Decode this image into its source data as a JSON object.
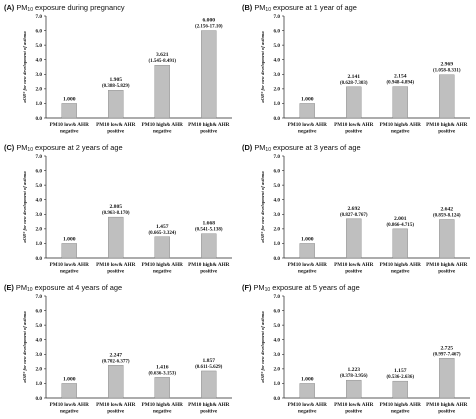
{
  "figure": {
    "colors": {
      "bar": "#bfbfbf",
      "bar_stroke": "#7f7f7f",
      "axis": "#222222",
      "text": "#111111"
    }
  },
  "chart_data": [
    {
      "type": "bar",
      "panel_label": "(A)",
      "title_pm": "PM",
      "title_pm_sub": "10",
      "title_rest": " exposure during pregnancy",
      "ylabel": "aOR* for new development of asthma",
      "ylim": [
        0,
        7
      ],
      "yticks": [
        "0.0",
        "1.0",
        "2.0",
        "3.0",
        "4.0",
        "5.0",
        "6.0",
        "7.0"
      ],
      "categories": [
        [
          "PM10 low& AHR",
          "negative"
        ],
        [
          "PM10 low& AHR",
          "positive"
        ],
        [
          "PM10 high& AHR",
          "negative"
        ],
        [
          "PM10 high& AHR",
          "positive"
        ]
      ],
      "values": [
        1.0,
        1.905,
        3.621,
        6.0
      ],
      "value_labels": [
        "1.000",
        "1.905",
        "3.621",
        "6.000"
      ],
      "ci_labels": [
        "",
        "(0.388-5.829)",
        "(1.545-8.491)",
        "(2.156-17.10)"
      ]
    },
    {
      "type": "bar",
      "panel_label": "(B)",
      "title_pm": "PM",
      "title_pm_sub": "10",
      "title_rest": " exposure at 1 year of age",
      "ylabel": "aOR* for new development of asthma",
      "ylim": [
        0,
        7
      ],
      "yticks": [
        "0.0",
        "1.0",
        "2.0",
        "3.0",
        "4.0",
        "5.0",
        "6.0",
        "7.0"
      ],
      "categories": [
        [
          "PM10 low& AHR",
          "negative"
        ],
        [
          "PM10 low& AHR",
          "positive"
        ],
        [
          "PM10 high& AHR",
          "negative"
        ],
        [
          "PM10 high& AHR",
          "positive"
        ]
      ],
      "values": [
        1.0,
        2.141,
        2.154,
        2.969
      ],
      "value_labels": [
        "1.000",
        "2.141",
        "2.154",
        "2.969"
      ],
      "ci_labels": [
        "",
        "(0.628-7.303)",
        "(0.948-4.894)",
        "(1.058-8.331)"
      ]
    },
    {
      "type": "bar",
      "panel_label": "(C)",
      "title_pm": "PM",
      "title_pm_sub": "10",
      "title_rest": " exposure at 2 years of age",
      "ylabel": "aOR* for new development of asthma",
      "ylim": [
        0,
        7
      ],
      "yticks": [
        "0.0",
        "1.0",
        "2.0",
        "3.0",
        "4.0",
        "5.0",
        "6.0",
        "7.0"
      ],
      "categories": [
        [
          "PM10 low& AHR",
          "negative"
        ],
        [
          "PM10 low& AHR",
          "positive"
        ],
        [
          "PM10 high& AHR",
          "negative"
        ],
        [
          "PM10 high& AHR",
          "positive"
        ]
      ],
      "values": [
        1.0,
        2.805,
        1.457,
        1.668
      ],
      "value_labels": [
        "1.000",
        "2.805",
        "1.457",
        "1.668"
      ],
      "ci_labels": [
        "",
        "(0.963-8.170)",
        "(0.665-3.324)",
        "(0.541-5.138)"
      ]
    },
    {
      "type": "bar",
      "panel_label": "(D)",
      "title_pm": "PM",
      "title_pm_sub": "10",
      "title_rest": " exposure at 3 years of age",
      "ylabel": "aOR* for new development of asthma",
      "ylim": [
        0,
        7
      ],
      "yticks": [
        "0.0",
        "1.0",
        "2.0",
        "3.0",
        "4.0",
        "5.0",
        "6.0",
        "7.0"
      ],
      "categories": [
        [
          "PM10 low& AHR",
          "negative"
        ],
        [
          "PM10 low& AHR",
          "positive"
        ],
        [
          "PM10 high& AHR",
          "negative"
        ],
        [
          "PM10 high& AHR",
          "positive"
        ]
      ],
      "values": [
        1.0,
        2.692,
        2.001,
        2.642
      ],
      "value_labels": [
        "1.000",
        "2.692",
        "2.001",
        "2.642"
      ],
      "ci_labels": [
        "",
        "(0.827-8.767)",
        "(0.866-4.715)",
        "(0.859-8.124)"
      ]
    },
    {
      "type": "bar",
      "panel_label": "(E)",
      "title_pm": "PM",
      "title_pm_sub": "10",
      "title_rest": " exposure at 4 years of age",
      "ylabel": "aOR* for new development of asthma",
      "ylim": [
        0,
        7
      ],
      "yticks": [
        "0.0",
        "1.0",
        "2.0",
        "3.0",
        "4.0",
        "5.0",
        "6.0",
        "7.0"
      ],
      "categories": [
        [
          "PM10 low& AHR",
          "negative"
        ],
        [
          "PM10 low& AHR",
          "positive"
        ],
        [
          "PM10 high& AHR",
          "negative"
        ],
        [
          "PM10 high& AHR",
          "positive"
        ]
      ],
      "values": [
        1.0,
        2.247,
        1.416,
        1.857
      ],
      "value_labels": [
        "1.000",
        "2.247",
        "1.416",
        "1.857"
      ],
      "ci_labels": [
        "",
        "(0.702-6.377)",
        "(0.636-3.153)",
        "(0.611-5.629)"
      ]
    },
    {
      "type": "bar",
      "panel_label": "(F)",
      "title_pm": "PM",
      "title_pm_sub": "10",
      "title_rest": " exposure at 5 years of age",
      "ylabel": "aOR* for new development of asthma",
      "ylim": [
        0,
        7
      ],
      "yticks": [
        "0.0",
        "1.0",
        "2.0",
        "3.0",
        "4.0",
        "5.0",
        "6.0",
        "7.0"
      ],
      "categories": [
        [
          "PM10 low& AHR",
          "negative"
        ],
        [
          "PM10 low& AHR",
          "positive"
        ],
        [
          "PM10 high& AHR",
          "negative"
        ],
        [
          "PM10 high& AHR",
          "positive"
        ]
      ],
      "values": [
        1.0,
        1.223,
        1.157,
        2.725
      ],
      "value_labels": [
        "1.000",
        "1.223",
        "1.157",
        "2.725"
      ],
      "ci_labels": [
        "",
        "(0.378-3.956)",
        "(0.536-2.636)",
        "(0.997-7.467)"
      ]
    }
  ]
}
